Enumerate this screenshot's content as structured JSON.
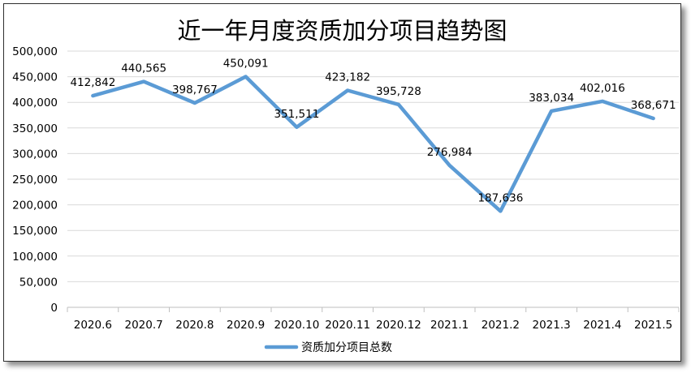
{
  "chart_data": {
    "type": "line",
    "title": "近一年月度资质加分项目趋势图",
    "categories": [
      "2020.6",
      "2020.7",
      "2020.8",
      "2020.9",
      "2020.10",
      "2020.11",
      "2020.12",
      "2021.1",
      "2021.2",
      "2021.3",
      "2021.4",
      "2021.5"
    ],
    "series": [
      {
        "name": "资质加分项目总数",
        "values": [
          412842,
          440565,
          398767,
          450091,
          351511,
          423182,
          395728,
          276984,
          187636,
          383034,
          402016,
          368671
        ]
      }
    ],
    "data_labels": [
      "412,842",
      "440,565",
      "398,767",
      "450,091",
      "351,511",
      "423,182",
      "395,728",
      "276,984",
      "187,636",
      "383,034",
      "402,016",
      "368,671"
    ],
    "y_ticks": [
      "0",
      "50,000",
      "100,000",
      "150,000",
      "200,000",
      "250,000",
      "300,000",
      "350,000",
      "400,000",
      "450,000",
      "500,000"
    ],
    "ylim": [
      0,
      500000
    ],
    "grid": true,
    "legend": "bottom",
    "line_color": "#5b9bd5",
    "grid_color": "#d9d9d9"
  }
}
